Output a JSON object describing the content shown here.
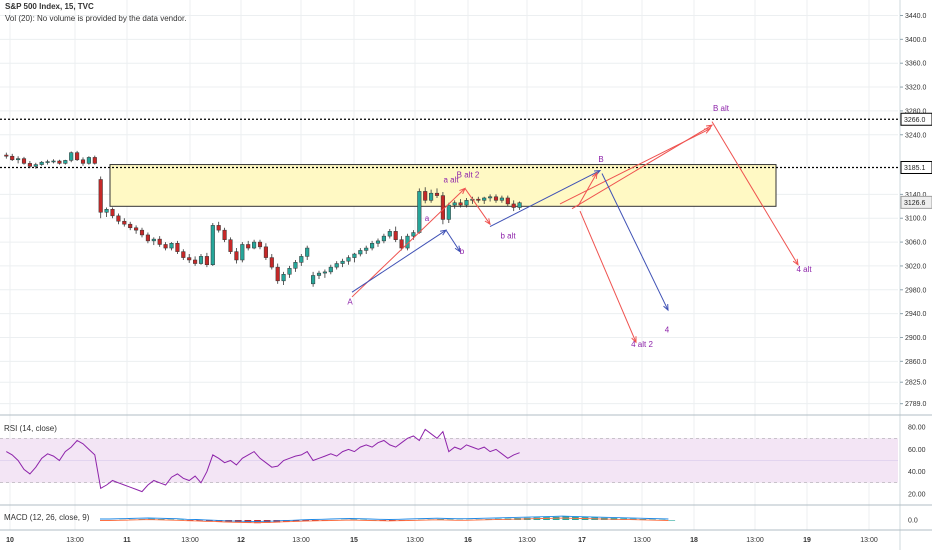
{
  "header": {
    "symbol_line": "S&P 500 Index, 15, TVC",
    "volume_line": "Vol (20): No volume is provided by the data vendor."
  },
  "panes": {
    "rsi_label": "RSI (14, close)",
    "macd_label": "MACD (12, 26, close, 9)"
  },
  "colors": {
    "up": "#26a69a",
    "down": "#c62828",
    "zone_fill": "#fff9c4",
    "rsi_fill": "#f3e5f5",
    "rsi_line": "#8e24aa",
    "wave_blue": "#3f51b5",
    "wave_red": "#ef5350",
    "wave_text": "#8e24aa"
  },
  "chart_data": [
    {
      "type": "candlestick",
      "title": "S&P 500 Index, 15, TVC",
      "y_axis_ticks": [
        "3440.0",
        "3400.0",
        "3360.0",
        "3320.0",
        "3280.0",
        "3240.0",
        "3140.0",
        "3100.0",
        "3060.0",
        "3020.0",
        "2980.0",
        "2940.0",
        "2900.0",
        "2860.0",
        "2825.0",
        "2789.0"
      ],
      "y_axis_values": [
        3440,
        3400,
        3360,
        3320,
        3280,
        3240,
        3140,
        3100,
        3060,
        3020,
        2980,
        2940,
        2900,
        2860,
        2825,
        2789
      ],
      "x_axis_ticks": [
        "10",
        "13:00",
        "11",
        "13:00",
        "12",
        "13:00",
        "15",
        "13:00",
        "16",
        "13:00",
        "17",
        "13:00",
        "18",
        "13:00",
        "19",
        "13:00"
      ],
      "price_tags": [
        {
          "label": "3266.0",
          "value": 3266,
          "style": "dotted-line"
        },
        {
          "label": "3185.1",
          "value": 3185.1,
          "style": "dotted-line"
        },
        {
          "label": "3126.6",
          "value": 3126.6,
          "style": "last-price"
        }
      ],
      "zone": {
        "top": 3190,
        "bottom": 3120
      },
      "candles": [
        [
          3206,
          3210,
          3200,
          3204
        ],
        [
          3204,
          3208,
          3196,
          3198
        ],
        [
          3198,
          3204,
          3192,
          3200
        ],
        [
          3200,
          3203,
          3190,
          3192
        ],
        [
          3192,
          3196,
          3184,
          3187
        ],
        [
          3187,
          3193,
          3183,
          3190
        ],
        [
          3190,
          3196,
          3188,
          3194
        ],
        [
          3194,
          3198,
          3190,
          3195
        ],
        [
          3195,
          3199,
          3192,
          3196
        ],
        [
          3196,
          3198,
          3190,
          3192
        ],
        [
          3192,
          3198,
          3190,
          3197
        ],
        [
          3197,
          3212,
          3194,
          3210
        ],
        [
          3210,
          3213,
          3196,
          3198
        ],
        [
          3198,
          3202,
          3188,
          3192
        ],
        [
          3192,
          3204,
          3190,
          3202
        ],
        [
          3202,
          3205,
          3190,
          3192
        ],
        [
          3165,
          3170,
          3100,
          3110
        ],
        [
          3110,
          3118,
          3102,
          3115
        ],
        [
          3115,
          3118,
          3100,
          3104
        ],
        [
          3104,
          3108,
          3090,
          3095
        ],
        [
          3095,
          3100,
          3086,
          3090
        ],
        [
          3090,
          3094,
          3080,
          3084
        ],
        [
          3084,
          3088,
          3074,
          3080
        ],
        [
          3080,
          3084,
          3068,
          3072
        ],
        [
          3072,
          3076,
          3058,
          3062
        ],
        [
          3062,
          3068,
          3055,
          3065
        ],
        [
          3065,
          3070,
          3052,
          3056
        ],
        [
          3056,
          3060,
          3046,
          3050
        ],
        [
          3050,
          3060,
          3046,
          3058
        ],
        [
          3058,
          3062,
          3040,
          3044
        ],
        [
          3044,
          3048,
          3030,
          3034
        ],
        [
          3034,
          3040,
          3025,
          3030
        ],
        [
          3030,
          3036,
          3020,
          3024
        ],
        [
          3024,
          3040,
          3022,
          3036
        ],
        [
          3036,
          3042,
          3018,
          3022
        ],
        [
          3022,
          3092,
          3020,
          3088
        ],
        [
          3088,
          3094,
          3076,
          3080
        ],
        [
          3080,
          3084,
          3060,
          3064
        ],
        [
          3064,
          3068,
          3040,
          3044
        ],
        [
          3044,
          3050,
          3024,
          3030
        ],
        [
          3030,
          3060,
          3026,
          3056
        ],
        [
          3056,
          3062,
          3046,
          3050
        ],
        [
          3050,
          3064,
          3048,
          3060
        ],
        [
          3060,
          3064,
          3048,
          3052
        ],
        [
          3052,
          3058,
          3030,
          3034
        ],
        [
          3034,
          3040,
          3014,
          3018
        ],
        [
          3018,
          3024,
          2990,
          2995
        ],
        [
          2995,
          3010,
          2988,
          3006
        ],
        [
          3006,
          3020,
          3000,
          3016
        ],
        [
          3016,
          3030,
          3010,
          3026
        ],
        [
          3026,
          3040,
          3020,
          3036
        ],
        [
          3036,
          3054,
          3030,
          3050
        ],
        [
          2990,
          3010,
          2985,
          3004
        ],
        [
          3004,
          3012,
          2998,
          3008
        ],
        [
          3008,
          3014,
          3000,
          3010
        ],
        [
          3010,
          3022,
          3006,
          3018
        ],
        [
          3018,
          3028,
          3014,
          3024
        ],
        [
          3024,
          3032,
          3018,
          3028
        ],
        [
          3028,
          3038,
          3022,
          3034
        ],
        [
          3034,
          3042,
          3026,
          3040
        ],
        [
          3040,
          3050,
          3036,
          3046
        ],
        [
          3046,
          3054,
          3040,
          3050
        ],
        [
          3050,
          3062,
          3046,
          3058
        ],
        [
          3058,
          3066,
          3052,
          3062
        ],
        [
          3062,
          3074,
          3058,
          3070
        ],
        [
          3070,
          3082,
          3066,
          3078
        ],
        [
          3078,
          3086,
          3060,
          3064
        ],
        [
          3064,
          3070,
          3046,
          3050
        ],
        [
          3050,
          3074,
          3046,
          3070
        ],
        [
          3070,
          3080,
          3064,
          3076
        ],
        [
          3076,
          3150,
          3074,
          3145
        ],
        [
          3145,
          3152,
          3125,
          3130
        ],
        [
          3130,
          3148,
          3126,
          3142
        ],
        [
          3142,
          3150,
          3134,
          3138
        ],
        [
          3138,
          3144,
          3090,
          3098
        ],
        [
          3098,
          3126,
          3092,
          3122
        ],
        [
          3122,
          3130,
          3116,
          3126
        ],
        [
          3126,
          3132,
          3118,
          3122
        ],
        [
          3122,
          3134,
          3118,
          3130
        ],
        [
          3130,
          3136,
          3124,
          3132
        ],
        [
          3132,
          3136,
          3126,
          3130
        ],
        [
          3130,
          3136,
          3124,
          3134
        ],
        [
          3134,
          3140,
          3128,
          3136
        ],
        [
          3136,
          3140,
          3126,
          3130
        ],
        [
          3130,
          3138,
          3126,
          3134
        ],
        [
          3134,
          3138,
          3120,
          3124
        ],
        [
          3124,
          3130,
          3112,
          3118
        ],
        [
          3118,
          3128,
          3114,
          3126
        ]
      ]
    },
    {
      "type": "line",
      "title": "RSI (14, close)",
      "y_axis_ticks": [
        "80.00",
        "60.00",
        "40.00",
        "20.00"
      ],
      "ylim": [
        10,
        90
      ],
      "series": [
        {
          "values": [
            58,
            55,
            50,
            42,
            38,
            44,
            52,
            56,
            54,
            50,
            58,
            62,
            68,
            65,
            60,
            55,
            25,
            28,
            32,
            30,
            28,
            26,
            24,
            22,
            28,
            32,
            30,
            28,
            35,
            38,
            34,
            32,
            36,
            30,
            40,
            55,
            52,
            48,
            50,
            46,
            52,
            55,
            58,
            52,
            48,
            44,
            45,
            50,
            52,
            54,
            55,
            58,
            50,
            52,
            54,
            56,
            54,
            58,
            60,
            58,
            62,
            64,
            62,
            66,
            68,
            64,
            62,
            66,
            70,
            72,
            68,
            78,
            74,
            70,
            76,
            58,
            62,
            60,
            64,
            62,
            60,
            62,
            58,
            60,
            56,
            52,
            55,
            57
          ]
        }
      ]
    },
    {
      "type": "bar",
      "title": "MACD (12, 26, close, 9)",
      "y_axis_ticks": [
        "0.0"
      ],
      "series": [
        {
          "name": "MACD",
          "values": [
            0,
            0,
            0.1,
            0.2,
            0.3,
            0.4,
            0.3,
            0.2,
            0.1,
            -0.1,
            -0.2,
            -0.4,
            -0.5,
            -0.7,
            -0.8,
            -0.9,
            -1.0,
            -0.9,
            -0.8,
            -0.6,
            -0.5,
            -0.3,
            -0.2,
            -0.1,
            0,
            0.1,
            0.2,
            0.1,
            0,
            -0.1,
            -0.2,
            -0.1,
            0,
            0.1,
            0.2,
            0.3,
            0.2,
            0.1,
            0.1,
            0.2,
            0.3,
            0.4,
            0.5,
            0.6,
            0.7,
            0.8,
            0.9,
            1.0,
            1.1,
            1.0,
            0.9,
            0.8,
            0.7,
            0.6,
            0.5,
            0.4,
            0.3,
            0.2,
            0.1,
            0
          ]
        }
      ]
    }
  ],
  "annotations": {
    "labels": [
      {
        "text": "A",
        "price": 2962,
        "bar": 51,
        "color": "wave_blue"
      },
      {
        "text": "a",
        "price": 3096,
        "bar": 62,
        "color": "wave_red"
      },
      {
        "text": "b",
        "price": 3038,
        "bar": 66,
        "color": "wave_blue"
      },
      {
        "text": "a alt",
        "price": 3158,
        "bar": 66,
        "color": "wave_red"
      },
      {
        "text": "B alt 2",
        "price": 3170,
        "bar": 68,
        "color": "wave_red"
      },
      {
        "text": "b alt",
        "price": 3062,
        "bar": 76,
        "color": "wave_blue"
      },
      {
        "text": "B",
        "price": 3196,
        "bar": 86,
        "color": "wave_blue"
      },
      {
        "text": "B alt",
        "price": 3282,
        "bar": 103,
        "color": "wave_red"
      },
      {
        "text": "4",
        "price": 2908,
        "bar": 99,
        "color": "wave_blue"
      },
      {
        "text": "4 alt 2",
        "price": 2884,
        "bar": 93,
        "color": "wave_red"
      },
      {
        "text": "4 alt",
        "price": 3008,
        "bar": 115,
        "color": "wave_red"
      }
    ]
  }
}
